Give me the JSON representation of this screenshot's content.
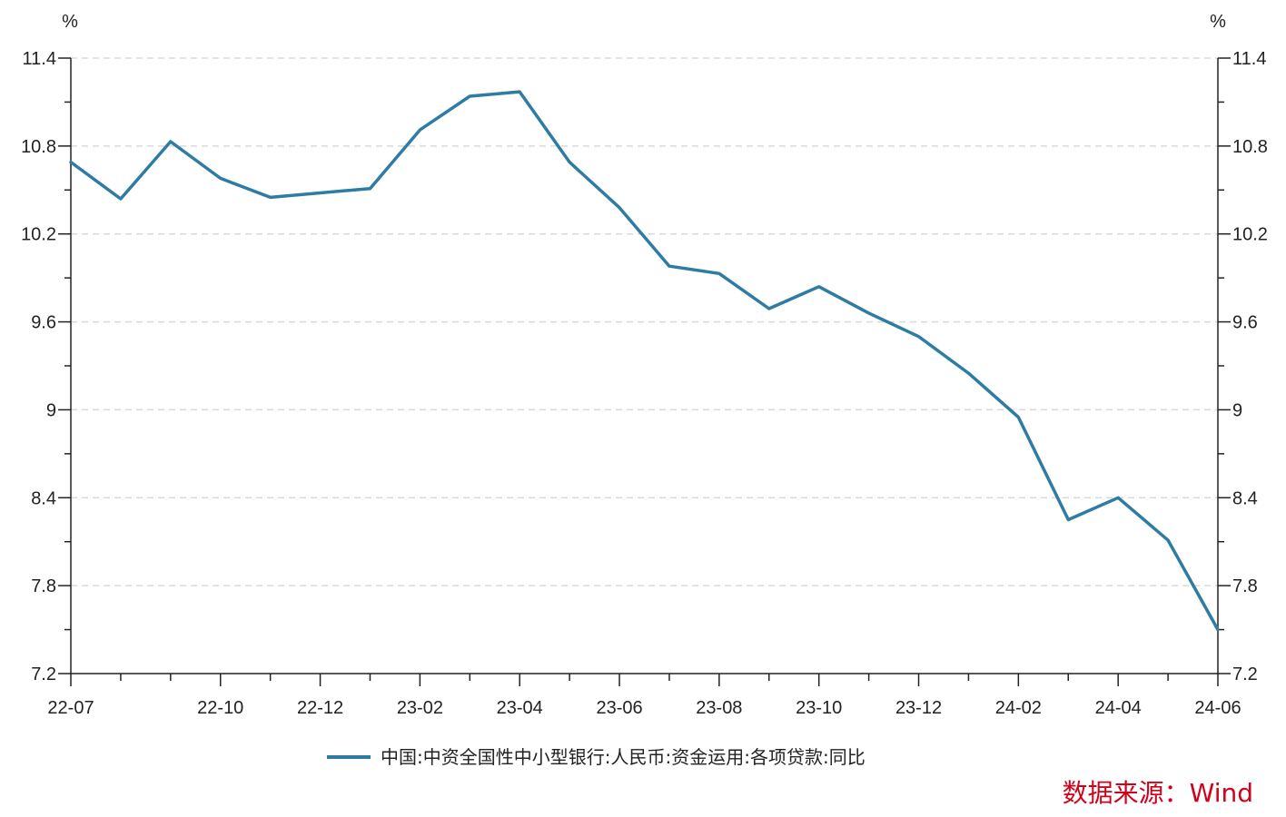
{
  "chart_data": {
    "type": "line",
    "title": "",
    "xlabel": "",
    "ylabel_left": "%",
    "ylabel_right": "%",
    "ylim": [
      7.2,
      11.4
    ],
    "yticks": [
      "11.4",
      "10.8",
      "10.2",
      "9.6",
      "9",
      "8.4",
      "7.8",
      "7.2"
    ],
    "ytick_values": [
      11.4,
      10.8,
      10.2,
      9.6,
      9,
      8.4,
      7.8,
      7.2
    ],
    "x": [
      "22-07",
      "22-08",
      "22-09",
      "22-10",
      "22-11",
      "22-12",
      "23-01",
      "23-02",
      "23-03",
      "23-04",
      "23-05",
      "23-06",
      "23-07",
      "23-08",
      "23-09",
      "23-10",
      "23-11",
      "23-12",
      "24-01",
      "24-02",
      "24-03",
      "24-04",
      "24-05",
      "24-06"
    ],
    "xtick_labels": [
      "22-07",
      "22-10",
      "22-12",
      "23-02",
      "23-04",
      "23-06",
      "23-08",
      "23-10",
      "23-12",
      "24-02",
      "24-04",
      "24-06"
    ],
    "series": [
      {
        "name": "中国:中资全国性中小型银行:人民币:资金运用:各项贷款:同比",
        "color": "#2e7ca3",
        "values": [
          10.69,
          10.44,
          10.83,
          10.58,
          10.45,
          10.48,
          10.51,
          10.91,
          11.14,
          11.17,
          10.69,
          10.38,
          9.98,
          9.93,
          9.69,
          9.84,
          9.66,
          9.5,
          9.25,
          8.95,
          8.25,
          8.4,
          8.11,
          7.5
        ]
      }
    ],
    "grid": "horizontal-dashed",
    "legend_position": "bottom-center"
  },
  "source": "数据来源：Wind",
  "colors": {
    "line": "#2e7ca3",
    "grid": "#d9d9d9",
    "axis": "#222222",
    "source": "#d0021b"
  }
}
